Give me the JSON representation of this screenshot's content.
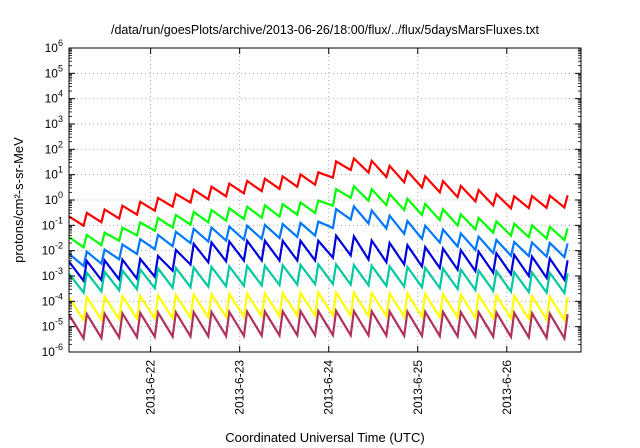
{
  "chart_data": {
    "type": "line",
    "title": "/data/run/goesPlots/archive/2013-06-26/18:00/flux/../flux/5daysMarsFluxes.txt",
    "xlabel": "Coordinated Universal Time (UTC)",
    "ylabel": "protons/cm²-s-sr-MeV",
    "y_scale": "log",
    "ylim": [
      1e-06,
      1000000.0
    ],
    "xlim": [
      "2013-06-21 02:00",
      "2013-06-26 20:00"
    ],
    "x_ticks": [
      "2013-6-22",
      "2013-6-23",
      "2013-6-24",
      "2013-6-25",
      "2013-6-26"
    ],
    "x_tick_days": [
      1,
      2,
      3,
      4,
      5
    ],
    "y_ticks": [
      {
        "mantissa": "10",
        "exp": "-6"
      },
      {
        "mantissa": "10",
        "exp": "-5"
      },
      {
        "mantissa": "10",
        "exp": "-4"
      },
      {
        "mantissa": "10",
        "exp": "-3"
      },
      {
        "mantissa": "10",
        "exp": "-2"
      },
      {
        "mantissa": "10",
        "exp": "-1"
      },
      {
        "mantissa": "10",
        "exp": "0"
      },
      {
        "mantissa": "10",
        "exp": "1"
      },
      {
        "mantissa": "10",
        "exp": "2"
      },
      {
        "mantissa": "10",
        "exp": "3"
      },
      {
        "mantissa": "10",
        "exp": "4"
      },
      {
        "mantissa": "10",
        "exp": "5"
      },
      {
        "mantissa": "10",
        "exp": "6"
      }
    ],
    "grid": true,
    "sawtooth_period_days": 0.2,
    "series": [
      {
        "color": "#ff0000",
        "x": [
          "2013-06-21 02:00",
          "2013-06-21 12:00",
          "2013-06-22 00:00",
          "2013-06-22 12:00",
          "2013-06-23 00:00",
          "2013-06-23 12:00",
          "2013-06-24 00:00",
          "2013-06-24 03:00",
          "2013-06-24 12:00",
          "2013-06-25 00:00",
          "2013-06-25 12:00",
          "2013-06-26 00:00",
          "2013-06-26 20:00"
        ],
        "y": [
          0.13,
          0.25,
          0.6,
          1.5,
          3,
          5,
          8,
          30,
          20,
          6,
          2,
          0.8,
          0.9
        ],
        "swing": 3
      },
      {
        "color": "#00ff00",
        "x": [
          "2013-06-21 02:00",
          "2013-06-21 12:00",
          "2013-06-22 00:00",
          "2013-06-22 12:00",
          "2013-06-23 00:00",
          "2013-06-23 12:00",
          "2013-06-24 00:00",
          "2013-06-24 03:00",
          "2013-06-24 12:00",
          "2013-06-25 00:00",
          "2013-06-25 12:00",
          "2013-06-26 00:00",
          "2013-06-26 20:00"
        ],
        "y": [
          0.02,
          0.03,
          0.1,
          0.2,
          0.3,
          0.4,
          0.6,
          2.5,
          1.5,
          0.5,
          0.15,
          0.07,
          0.04
        ],
        "swing": 3
      },
      {
        "color": "#0077ff",
        "x": [
          "2013-06-21 02:00",
          "2013-06-21 12:00",
          "2013-06-22 00:00",
          "2013-06-22 12:00",
          "2013-06-23 00:00",
          "2013-06-23 12:00",
          "2013-06-24 00:00",
          "2013-06-24 03:00",
          "2013-06-24 12:00",
          "2013-06-25 00:00",
          "2013-06-25 12:00",
          "2013-06-26 00:00",
          "2013-06-26 20:00"
        ],
        "y": [
          0.004,
          0.006,
          0.02,
          0.04,
          0.05,
          0.06,
          0.08,
          0.4,
          0.2,
          0.06,
          0.025,
          0.012,
          0.01
        ],
        "swing": 3.5
      },
      {
        "color": "#0000dd",
        "x": [
          "2013-06-21 02:00",
          "2013-06-22 00:00",
          "2013-06-22 12:00",
          "2013-06-23 00:00",
          "2013-06-24 00:00",
          "2013-06-24 03:00",
          "2013-06-24 12:00",
          "2013-06-25 00:00",
          "2013-06-26 00:00",
          "2013-06-26 20:00"
        ],
        "y": [
          0.0015,
          0.002,
          0.008,
          0.01,
          0.01,
          0.02,
          0.01,
          0.006,
          0.003,
          0.0015
        ],
        "swing": 6
      },
      {
        "color": "#00c8a0",
        "x": [
          "2013-06-21 02:00",
          "2013-06-22 00:00",
          "2013-06-23 00:00",
          "2013-06-24 00:00",
          "2013-06-25 00:00",
          "2013-06-26 00:00",
          "2013-06-26 20:00"
        ],
        "y": [
          0.0005,
          0.0008,
          0.001,
          0.0012,
          0.0009,
          0.0006,
          0.0005
        ],
        "swing": 6
      },
      {
        "color": "#ffff00",
        "x": [
          "2013-06-21 02:00",
          "2013-06-22 00:00",
          "2013-06-23 00:00",
          "2013-06-24 00:00",
          "2013-06-25 00:00",
          "2013-06-26 00:00",
          "2013-06-26 20:00"
        ],
        "y": [
          5e-05,
          6e-05,
          7e-05,
          8e-05,
          7e-05,
          6e-05,
          5e-05
        ],
        "swing": 8
      },
      {
        "color": "#b03060",
        "x": [
          "2013-06-21 02:00",
          "2013-06-22 00:00",
          "2013-06-23 00:00",
          "2013-06-24 00:00",
          "2013-06-25 00:00",
          "2013-06-26 00:00",
          "2013-06-26 20:00"
        ],
        "y": [
          1e-05,
          1.2e-05,
          1.3e-05,
          1.4e-05,
          1.3e-05,
          1.2e-05,
          1e-05
        ],
        "swing": 9
      }
    ]
  }
}
